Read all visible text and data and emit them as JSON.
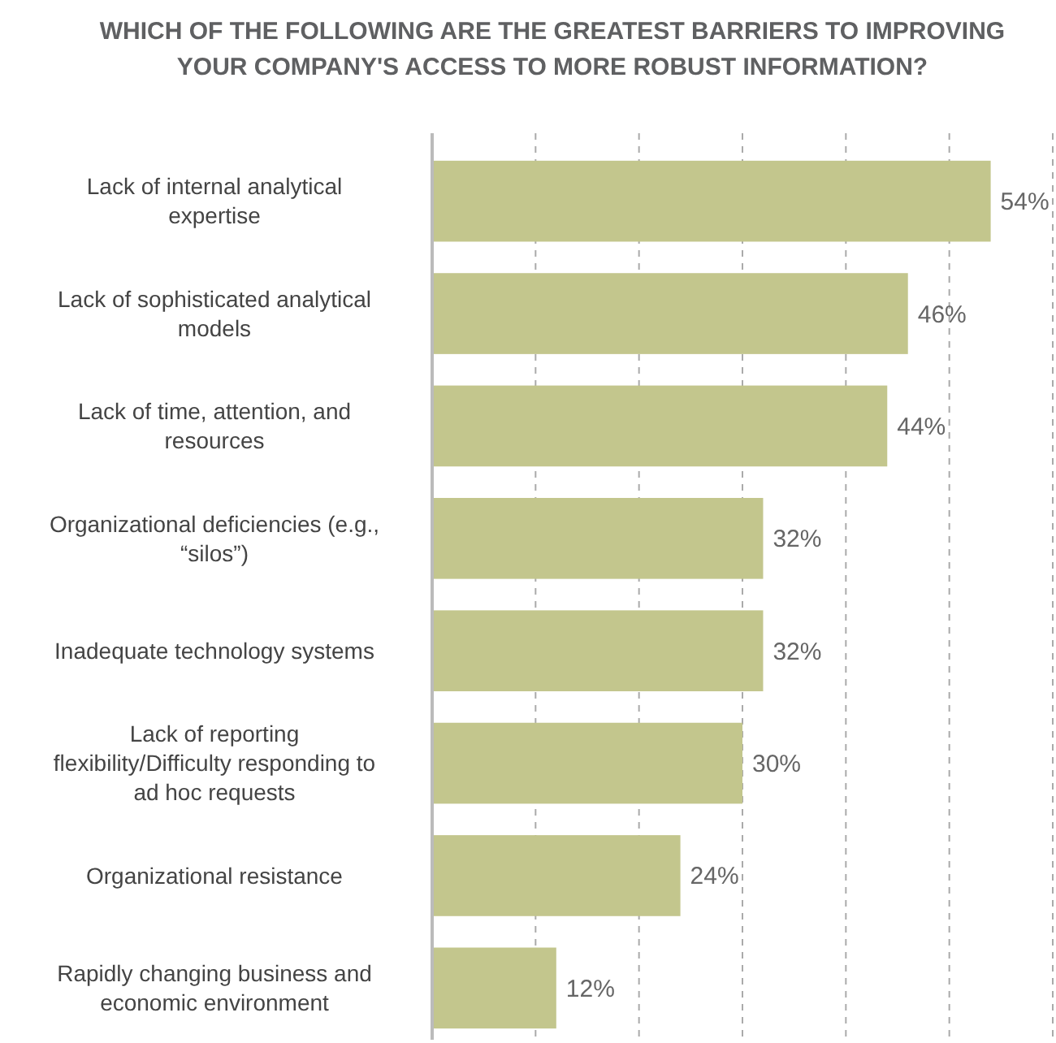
{
  "chart_data": {
    "type": "bar",
    "orientation": "horizontal",
    "title": "WHICH OF THE FOLLOWING ARE THE GREATEST BARRIERS TO IMPROVING YOUR COMPANY'S ACCESS TO MORE ROBUST INFORMATION?",
    "categories": [
      "Lack of internal analytical expertise",
      "Lack of sophisticated analytical models",
      "Lack of time, attention, and resources",
      "Organizational deficiencies (e.g., “silos”)",
      "Inadequate technology systems",
      "Lack of reporting flexibility/Difficulty responding to ad hoc requests",
      "Organizational resistance",
      "Rapidly changing business and economic environment"
    ],
    "values": [
      54,
      46,
      44,
      32,
      32,
      30,
      24,
      12
    ],
    "value_labels": [
      "54%",
      "46%",
      "44%",
      "32%",
      "32%",
      "30%",
      "24%",
      "12%"
    ],
    "color": "#c3c68d",
    "xlim": [
      0,
      60
    ],
    "xticks": [
      {
        "value": 0,
        "label": null
      },
      {
        "value": 10,
        "label": null
      },
      {
        "value": 20,
        "label": null
      },
      {
        "value": 30,
        "label": null
      },
      {
        "value": 40,
        "label": null
      },
      {
        "value": 50,
        "label": null
      },
      {
        "value": 60,
        "label": null
      }
    ],
    "grid": "x",
    "tick_labels": "y"
  }
}
